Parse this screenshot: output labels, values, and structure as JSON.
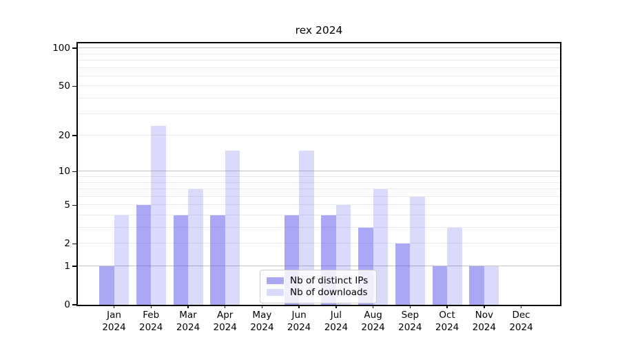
{
  "title": "rex 2024",
  "chart_data": {
    "type": "bar",
    "title": "rex 2024",
    "categories": [
      "Jan",
      "Feb",
      "Mar",
      "Apr",
      "May",
      "Jun",
      "Jul",
      "Aug",
      "Sep",
      "Oct",
      "Nov",
      "Dec"
    ],
    "category_year": "2024",
    "series": [
      {
        "name": "Nb of distinct IPs",
        "color": "rgba(82,82,235,0.50)",
        "values": [
          1,
          5,
          4,
          4,
          0,
          4,
          4,
          3,
          2,
          1,
          1,
          0
        ]
      },
      {
        "name": "Nb of downloads",
        "color": "rgba(82,82,235,0.21)",
        "values": [
          4,
          24,
          7,
          15,
          0,
          15,
          5,
          7,
          6,
          3,
          1,
          0
        ]
      }
    ],
    "yscale": "log1p",
    "ylim": [
      0,
      112
    ],
    "yticks": [
      0,
      1,
      2,
      5,
      10,
      20,
      50,
      100
    ],
    "ytick_labels": [
      "0",
      "1",
      "2",
      "5",
      "10",
      "20",
      "50",
      "100"
    ],
    "gridlines": {
      "major": [
        1,
        10,
        100
      ],
      "minor": [
        2,
        3,
        4,
        5,
        6,
        7,
        8,
        9,
        20,
        30,
        40,
        50,
        60,
        70,
        80,
        90
      ]
    },
    "grid": "horizontal",
    "legend_position": "inside lower-center",
    "colors": {
      "bar_ips": "rgba(82,82,235,0.50)",
      "bar_downloads": "rgba(82,82,235,0.21)",
      "major_grid": "#c2c2c2",
      "minor_grid": "#e9e9e9",
      "spine": "#000000",
      "background": "#ffffff"
    }
  }
}
